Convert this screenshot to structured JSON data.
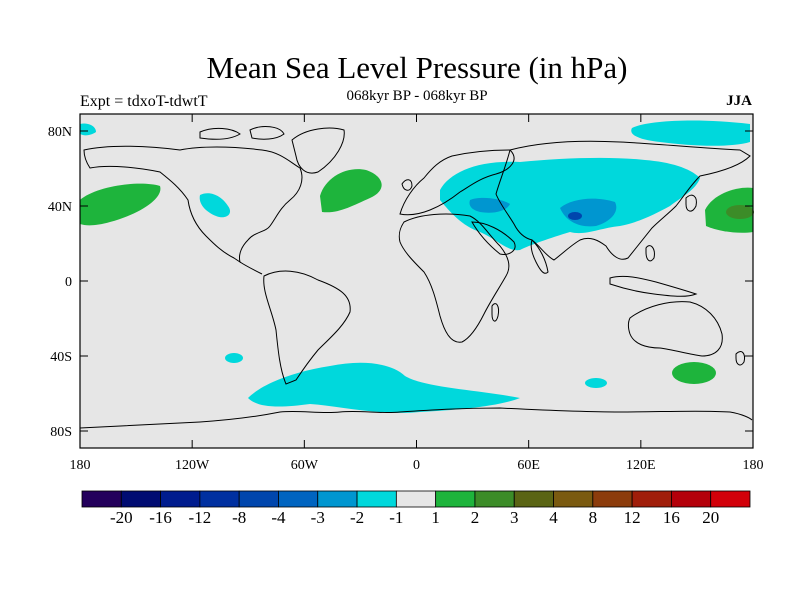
{
  "title": "Mean Sea Level Pressure (in hPa)",
  "subtitle": "068kyr BP - 068kyr BP",
  "left_label": "Expt = tdxoT-tdwtT",
  "right_label": "JJA",
  "lat_ticks": [
    "80N",
    "40N",
    "0",
    "40S",
    "80S"
  ],
  "lon_ticks": [
    "180",
    "120W",
    "60W",
    "0",
    "60E",
    "120E",
    "180"
  ],
  "colorbar": {
    "colors": [
      "#24005c",
      "#000c72",
      "#001c8e",
      "#0030a0",
      "#0046ad",
      "#0064c0",
      "#0096d0",
      "#00d8dc",
      "#e6e6e6",
      "#1eb43c",
      "#3c8c28",
      "#5a6414",
      "#7a5a10",
      "#8c3c0c",
      "#a01e0a",
      "#b4000a",
      "#d2000a"
    ],
    "labels": [
      "-20",
      "-16",
      "-12",
      "-8",
      "-4",
      "-3",
      "-2",
      "-1",
      "1",
      "2",
      "3",
      "4",
      "8",
      "12",
      "16",
      "20"
    ]
  }
}
